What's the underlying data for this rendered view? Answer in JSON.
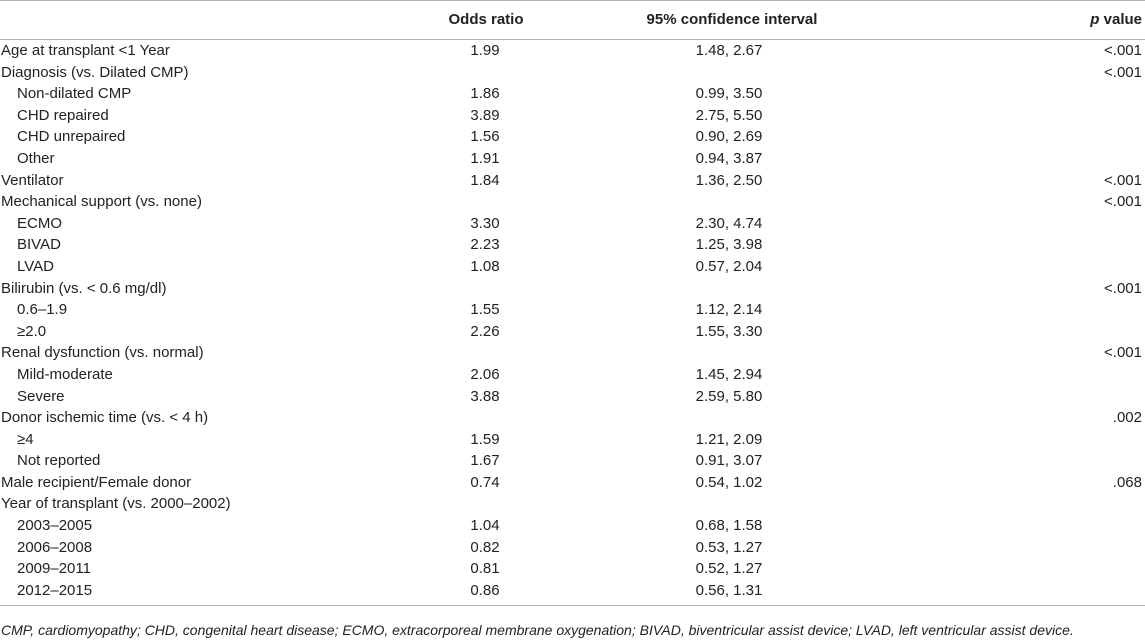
{
  "header": {
    "label": "",
    "odds_ratio": "Odds ratio",
    "ci": "95% confidence interval",
    "p_italic": "p",
    "p_rest": " value"
  },
  "rows": [
    {
      "label": "Age at transplant <1 Year",
      "indent": false,
      "or": "1.99",
      "ci": "1.48, 2.67",
      "p": "<.001"
    },
    {
      "label": "Diagnosis (vs. Dilated CMP)",
      "indent": false,
      "or": "",
      "ci": "",
      "p": "<.001"
    },
    {
      "label": "Non-dilated CMP",
      "indent": true,
      "or": "1.86",
      "ci": "0.99, 3.50",
      "p": ""
    },
    {
      "label": "CHD repaired",
      "indent": true,
      "or": "3.89",
      "ci": "2.75, 5.50",
      "p": ""
    },
    {
      "label": "CHD unrepaired",
      "indent": true,
      "or": "1.56",
      "ci": "0.90, 2.69",
      "p": ""
    },
    {
      "label": "Other",
      "indent": true,
      "or": "1.91",
      "ci": "0.94, 3.87",
      "p": ""
    },
    {
      "label": "Ventilator",
      "indent": false,
      "or": "1.84",
      "ci": "1.36, 2.50",
      "p": "<.001"
    },
    {
      "label": "Mechanical support (vs. none)",
      "indent": false,
      "or": "",
      "ci": "",
      "p": "<.001"
    },
    {
      "label": "ECMO",
      "indent": true,
      "or": "3.30",
      "ci": "2.30, 4.74",
      "p": ""
    },
    {
      "label": "BIVAD",
      "indent": true,
      "or": "2.23",
      "ci": "1.25, 3.98",
      "p": ""
    },
    {
      "label": "LVAD",
      "indent": true,
      "or": "1.08",
      "ci": "0.57, 2.04",
      "p": ""
    },
    {
      "label": "Bilirubin (vs. < 0.6 mg/dl)",
      "indent": false,
      "or": "",
      "ci": "",
      "p": "<.001"
    },
    {
      "label": "0.6–1.9",
      "indent": true,
      "or": "1.55",
      "ci": "1.12, 2.14",
      "p": ""
    },
    {
      "label": "≥2.0",
      "indent": true,
      "or": "2.26",
      "ci": "1.55, 3.30",
      "p": ""
    },
    {
      "label": "Renal dysfunction (vs. normal)",
      "indent": false,
      "or": "",
      "ci": "",
      "p": "<.001"
    },
    {
      "label": "Mild-moderate",
      "indent": true,
      "or": "2.06",
      "ci": "1.45, 2.94",
      "p": ""
    },
    {
      "label": "Severe",
      "indent": true,
      "or": "3.88",
      "ci": "2.59, 5.80",
      "p": ""
    },
    {
      "label": "Donor ischemic time (vs. < 4 h)",
      "indent": false,
      "or": "",
      "ci": "",
      "p": ".002"
    },
    {
      "label": "≥4",
      "indent": true,
      "or": "1.59",
      "ci": "1.21, 2.09",
      "p": ""
    },
    {
      "label": "Not reported",
      "indent": true,
      "or": "1.67",
      "ci": "0.91, 3.07",
      "p": ""
    },
    {
      "label": "Male recipient/Female donor",
      "indent": false,
      "or": "0.74",
      "ci": "0.54, 1.02",
      "p": ".068"
    },
    {
      "label": "Year of transplant (vs. 2000–2002)",
      "indent": false,
      "or": "",
      "ci": "",
      "p": ""
    },
    {
      "label": "2003–2005",
      "indent": true,
      "or": "1.04",
      "ci": "0.68, 1.58",
      "p": ""
    },
    {
      "label": "2006–2008",
      "indent": true,
      "or": "0.82",
      "ci": "0.53, 1.27",
      "p": ""
    },
    {
      "label": "2009–2011",
      "indent": true,
      "or": "0.81",
      "ci": "0.52, 1.27",
      "p": ""
    },
    {
      "label": "2012–2015",
      "indent": true,
      "or": "0.86",
      "ci": "0.56, 1.31",
      "p": ""
    }
  ],
  "footnote": "CMP, cardiomyopathy; CHD, congenital heart disease; ECMO, extracorporeal membrane oxygenation; BIVAD, biventricular assist device; LVAD, left ventricular assist device."
}
